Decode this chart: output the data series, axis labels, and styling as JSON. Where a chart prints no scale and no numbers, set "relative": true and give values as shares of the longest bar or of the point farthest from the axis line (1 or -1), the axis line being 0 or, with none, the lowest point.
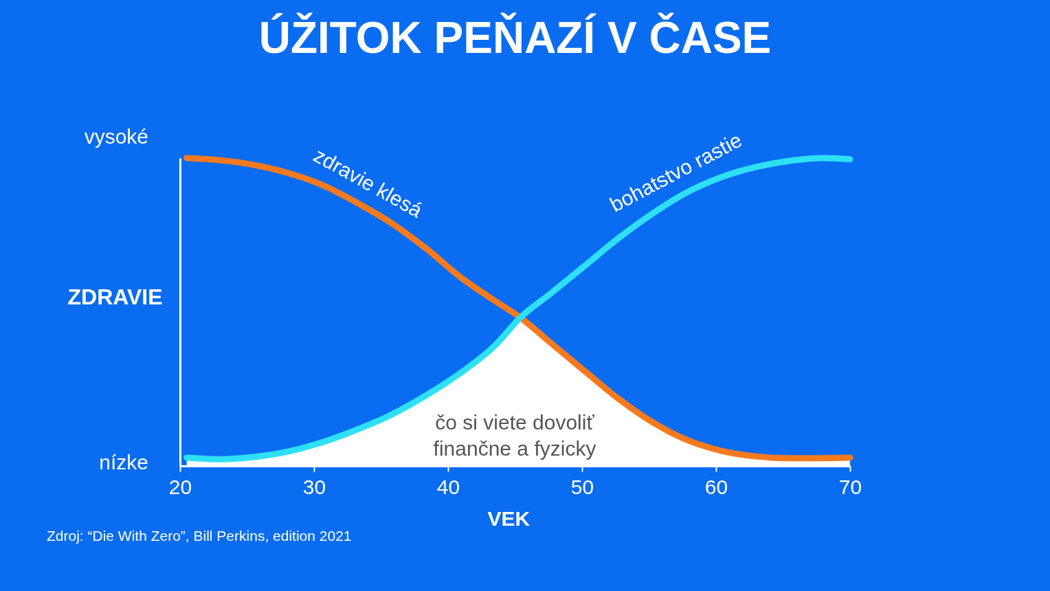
{
  "chart_data": {
    "type": "line",
    "title": "ÚŽITOK PEŇAZÍ V ČASE",
    "xlabel": "VEK",
    "ylabel": "ZDRAVIE",
    "relative": true,
    "grid": false,
    "line_style": "solid",
    "xlim": [
      20,
      70
    ],
    "xticks": [
      20,
      30,
      40,
      50,
      60,
      70
    ],
    "series": [
      {
        "type": "area",
        "color": "#ffffff",
        "x": [
          20.5,
          23.0,
          25.5,
          28.1,
          30.7,
          33.2,
          35.8,
          38.4,
          40.9,
          43.5,
          45.4,
          47.6,
          50.2,
          52.7,
          55.3,
          57.8,
          60.4,
          63.0,
          65.5,
          70
        ],
        "values": [
          0.027,
          0.022,
          0.029,
          0.047,
          0.078,
          0.118,
          0.167,
          0.23,
          0.301,
          0.391,
          0.482,
          0.402,
          0.308,
          0.219,
          0.141,
          0.085,
          0.049,
          0.031,
          0.025,
          0.027
        ]
      },
      {
        "name": "zdravie klesá",
        "color": "#f47a1f",
        "x": [
          20.5,
          23.0,
          25.5,
          28.1,
          30.7,
          33.2,
          35.8,
          38.4,
          40.9,
          43.5,
          45.4,
          47.6,
          50.2,
          52.7,
          55.3,
          57.8,
          60.4,
          63.0,
          65.5,
          70
        ],
        "values": [
          1.0,
          0.993,
          0.978,
          0.951,
          0.911,
          0.855,
          0.788,
          0.705,
          0.614,
          0.536,
          0.482,
          0.402,
          0.308,
          0.219,
          0.141,
          0.085,
          0.049,
          0.031,
          0.025,
          0.027
        ]
      },
      {
        "name": "bohatstvo rastie",
        "color": "#2ee0f5",
        "x": [
          20.5,
          23.0,
          25.5,
          28.1,
          30.7,
          33.2,
          35.8,
          38.4,
          40.9,
          43.5,
          45.4,
          47.6,
          50.2,
          52.7,
          55.3,
          57.8,
          60.4,
          63.0,
          65.5,
          68.1,
          70
        ],
        "values": [
          0.027,
          0.022,
          0.029,
          0.047,
          0.078,
          0.118,
          0.167,
          0.23,
          0.301,
          0.391,
          0.482,
          0.558,
          0.65,
          0.739,
          0.821,
          0.888,
          0.938,
          0.971,
          0.991,
          1.0,
          0.996
        ]
      }
    ],
    "annotations": [
      "vysoké",
      "nízke",
      "čo si viete dovoliť\nfinančne a fyzicky",
      "Zdroj: “Die With Zero”, Bill Perkins, edition 2021"
    ]
  }
}
